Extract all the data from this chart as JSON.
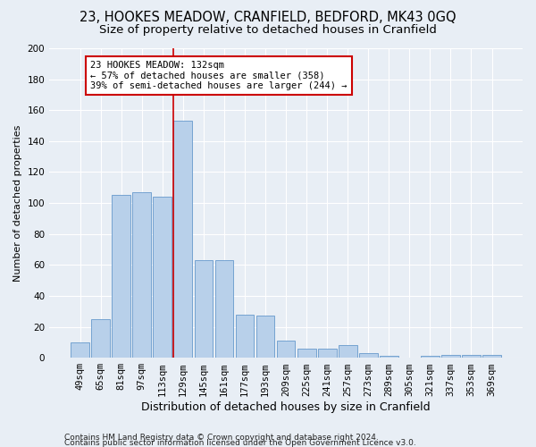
{
  "title1": "23, HOOKES MEADOW, CRANFIELD, BEDFORD, MK43 0GQ",
  "title2": "Size of property relative to detached houses in Cranfield",
  "xlabel": "Distribution of detached houses by size in Cranfield",
  "ylabel": "Number of detached properties",
  "footer1": "Contains HM Land Registry data © Crown copyright and database right 2024.",
  "footer2": "Contains public sector information licensed under the Open Government Licence v3.0.",
  "categories": [
    "49sqm",
    "65sqm",
    "81sqm",
    "97sqm",
    "113sqm",
    "129sqm",
    "145sqm",
    "161sqm",
    "177sqm",
    "193sqm",
    "209sqm",
    "225sqm",
    "241sqm",
    "257sqm",
    "273sqm",
    "289sqm",
    "305sqm",
    "321sqm",
    "337sqm",
    "353sqm",
    "369sqm"
  ],
  "values": [
    10,
    25,
    105,
    107,
    104,
    153,
    63,
    63,
    28,
    27,
    11,
    6,
    6,
    8,
    3,
    1,
    0,
    1,
    2,
    2,
    2
  ],
  "bar_color": "#b8d0ea",
  "bar_edge_color": "#6699cc",
  "annotation_text": "23 HOOKES MEADOW: 132sqm\n← 57% of detached houses are smaller (358)\n39% of semi-detached houses are larger (244) →",
  "annotation_box_color": "#ffffff",
  "annotation_box_edge": "#cc0000",
  "vline_color": "#cc0000",
  "vline_x_idx": 5,
  "ylim": [
    0,
    200
  ],
  "bg_color": "#e8eef5",
  "grid_color": "#ffffff",
  "title1_fontsize": 10.5,
  "title2_fontsize": 9.5,
  "xlabel_fontsize": 9,
  "ylabel_fontsize": 8,
  "tick_fontsize": 7.5,
  "ann_fontsize": 7.5,
  "footer_fontsize": 6.5
}
